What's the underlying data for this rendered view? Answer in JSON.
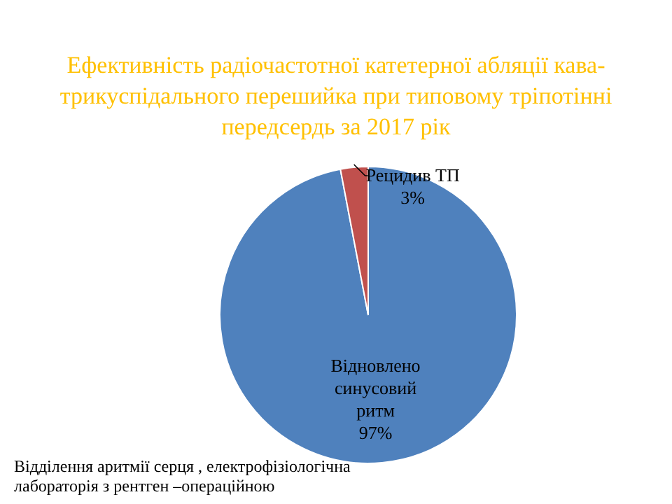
{
  "chart_data": {
    "type": "pie",
    "title": "Ефективність радіочастотної катетерної абляції кава-трикуспідального перешийка при типовому тріпотінні передсердь  за 2017 рік",
    "categories": [
      "Відновлено синусовий ритм",
      "Рецидив ТП"
    ],
    "values": [
      97,
      3
    ],
    "value_labels": [
      "97%",
      "3%"
    ],
    "colors": [
      "#4f81bd",
      "#c0504d"
    ],
    "annotations": [
      "Відділення аритмії серця , електрофізіологічна лабораторія з рентген –операційною"
    ]
  }
}
